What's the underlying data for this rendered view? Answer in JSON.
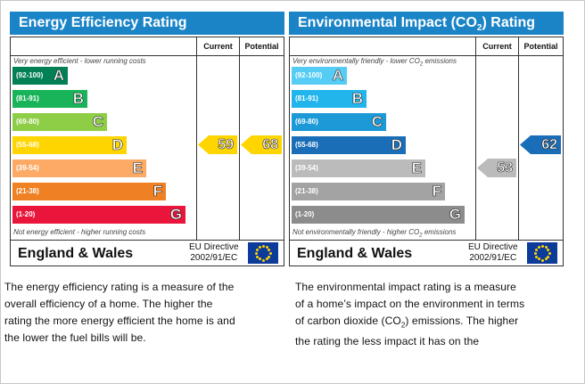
{
  "energy": {
    "title": "Energy Efficiency Rating",
    "current_label": "Current",
    "potential_label": "Potential",
    "top_note": "Very energy efficient - lower running costs",
    "bottom_note": "Not energy efficient - higher running costs",
    "bands": [
      {
        "range": "(92-100)",
        "letter": "A",
        "color": "#008054"
      },
      {
        "range": "(81-91)",
        "letter": "B",
        "color": "#19b459"
      },
      {
        "range": "(69-80)",
        "letter": "C",
        "color": "#8dce46"
      },
      {
        "range": "(55-68)",
        "letter": "D",
        "color": "#ffd500"
      },
      {
        "range": "(39-54)",
        "letter": "E",
        "color": "#fcaa65"
      },
      {
        "range": "(21-38)",
        "letter": "F",
        "color": "#ef8023"
      },
      {
        "range": "(1-20)",
        "letter": "G",
        "color": "#e9153b"
      }
    ],
    "current": "59",
    "current_color": "#ffd500",
    "potential": "68",
    "potential_color": "#ffd500",
    "country": "England & Wales",
    "eu_line1": "EU Directive",
    "eu_line2": "2002/91/EC",
    "header_color": "#1a84c7"
  },
  "environment": {
    "title_main": "Environmental Impact (CO",
    "title_sub": "2",
    "title_end": ") Rating",
    "current_label": "Current",
    "potential_label": "Potential",
    "top_note_main": "Very environmentally friendly - lower CO",
    "top_note_sub": "2",
    "top_note_end": " emissions",
    "bottom_note_main": "Not environmentally friendly - higher CO",
    "bottom_note_sub": "2",
    "bottom_note_end": " emissions",
    "bands": [
      {
        "range": "(92-100)",
        "letter": "A",
        "color": "#55ccf5"
      },
      {
        "range": "(81-91)",
        "letter": "B",
        "color": "#22b5ec"
      },
      {
        "range": "(69-80)",
        "letter": "C",
        "color": "#1c9ad8"
      },
      {
        "range": "(55-68)",
        "letter": "D",
        "color": "#1a6eb8"
      },
      {
        "range": "(39-54)",
        "letter": "E",
        "color": "#bbbbbb"
      },
      {
        "range": "(21-38)",
        "letter": "F",
        "color": "#a3a3a3"
      },
      {
        "range": "(1-20)",
        "letter": "G",
        "color": "#8c8c8c"
      }
    ],
    "current": "53",
    "current_color": "#bbbbbb",
    "potential": "62",
    "potential_color": "#1a6eb8",
    "country": "England & Wales",
    "eu_line1": "EU Directive",
    "eu_line2": "2002/91/EC",
    "header_color": "#1a84c7"
  },
  "desc_left": {
    "lines": [
      "The energy efficiency rating is a measure of the",
      "overall efficiency of a home. The higher the",
      "rating the more energy efficient the home is and",
      "the lower the fuel bills will be."
    ]
  },
  "desc_right": {
    "line1": "The environmental impact rating is a measure",
    "line2": "of a home’s impact on the environment in terms",
    "line3_main": "of carbon dioxide (CO",
    "line3_sub": "2",
    "line3_end": ") emissions. The higher",
    "line4": "the rating the less impact it has on the"
  }
}
